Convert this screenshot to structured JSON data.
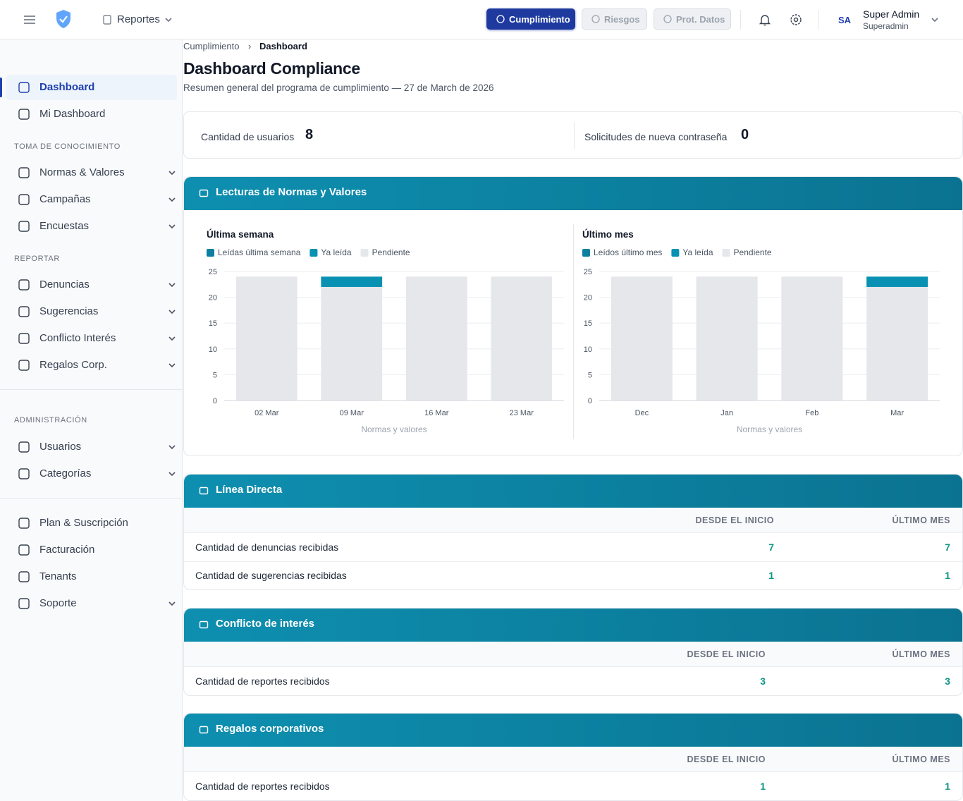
{
  "header": {
    "nav_menu": "Reportes",
    "modules": [
      "Cumplimiento",
      "Riesgos",
      "Prot. Datos"
    ],
    "user": {
      "initials": "SA",
      "name": "Super Admin",
      "role": "Superadmin"
    }
  },
  "sidebar": {
    "groups": [
      {
        "items": [
          {
            "label": "Dashboard",
            "active": true
          },
          {
            "label": "Mi Dashboard"
          }
        ]
      },
      {
        "title": "TOMA DE CONOCIMIENTO",
        "items": [
          {
            "label": "Normas & Valores",
            "expandable": true
          },
          {
            "label": "Campañas",
            "expandable": true
          },
          {
            "label": "Encuestas",
            "expandable": true
          }
        ]
      },
      {
        "title": "REPORTAR",
        "items": [
          {
            "label": "Denuncias",
            "expandable": true
          },
          {
            "label": "Sugerencias",
            "expandable": true
          },
          {
            "label": "Conflicto Interés",
            "expandable": true
          },
          {
            "label": "Regalos Corp.",
            "expandable": true
          }
        ]
      },
      {
        "title": "ADMINISTRACIÓN",
        "items": [
          {
            "label": "Usuarios",
            "expandable": true
          },
          {
            "label": "Categorías",
            "expandable": true
          }
        ]
      },
      {
        "items": [
          {
            "label": "Plan & Suscripción"
          },
          {
            "label": "Facturación"
          },
          {
            "label": "Tenants"
          },
          {
            "label": "Soporte",
            "expandable": true
          }
        ]
      }
    ]
  },
  "breadcrumb": [
    "Cumplimiento",
    "Dashboard"
  ],
  "page": {
    "title": "Dashboard Compliance",
    "subtitle": "Resumen general del programa de cumplimiento — 27 de March de 2026"
  },
  "stats": [
    {
      "label": "Cantidad de usuarios",
      "value": 8
    },
    {
      "label": "Solicitudes de nueva contraseña",
      "value": 0
    }
  ],
  "readings": {
    "title": "Lecturas de Normas y Valores"
  },
  "chart_data": [
    {
      "type": "bar",
      "stacked": true,
      "title": "Última semana",
      "x_label": "Normas y valores",
      "categories": [
        "02 Mar",
        "09 Mar",
        "16 Mar",
        "23 Mar"
      ],
      "series": [
        {
          "name": "Leídas última semana",
          "color": "#0e7fa0",
          "values": [
            0,
            0,
            0,
            0
          ]
        },
        {
          "name": "Ya leída",
          "color": "#0891b2",
          "values": [
            0,
            2,
            0,
            0
          ]
        },
        {
          "name": "Pendiente",
          "color": "#e5e7eb",
          "values": [
            24,
            22,
            24,
            24
          ]
        }
      ],
      "ylim": [
        0,
        25
      ],
      "yticks": [
        0,
        5,
        10,
        15,
        20,
        25
      ],
      "grid": true
    },
    {
      "type": "bar",
      "stacked": true,
      "title": "Último mes",
      "x_label": "Normas y valores",
      "categories": [
        "Dec",
        "Jan",
        "Feb",
        "Mar"
      ],
      "series": [
        {
          "name": "Leídos último mes",
          "color": "#0e7fa0",
          "values": [
            0,
            0,
            0,
            0
          ]
        },
        {
          "name": "Ya leída",
          "color": "#0891b2",
          "values": [
            0,
            0,
            0,
            2
          ]
        },
        {
          "name": "Pendiente",
          "color": "#e5e7eb",
          "values": [
            24,
            24,
            24,
            22
          ]
        }
      ],
      "ylim": [
        0,
        25
      ],
      "yticks": [
        0,
        5,
        10,
        15,
        20,
        25
      ],
      "grid": true
    }
  ],
  "tables": [
    {
      "title": "Línea Directa",
      "columns": [
        "DESDE EL INICIO",
        "ÚLTIMO MES"
      ],
      "rows": [
        {
          "label": "Cantidad de denuncias recibidas",
          "values": [
            7,
            7
          ]
        },
        {
          "label": "Cantidad de sugerencias recibidas",
          "values": [
            1,
            1
          ]
        }
      ]
    },
    {
      "title": "Conflicto de interés",
      "columns": [
        "DESDE EL INICIO",
        "ÚLTIMO MES"
      ],
      "rows": [
        {
          "label": "Cantidad de reportes recibidos",
          "values": [
            3,
            3
          ]
        }
      ]
    },
    {
      "title": "Regalos corporativos",
      "columns": [
        "DESDE EL INICIO",
        "ÚLTIMO MES"
      ],
      "rows": [
        {
          "label": "Cantidad de reportes recibidos",
          "values": [
            1,
            1
          ]
        }
      ]
    }
  ]
}
